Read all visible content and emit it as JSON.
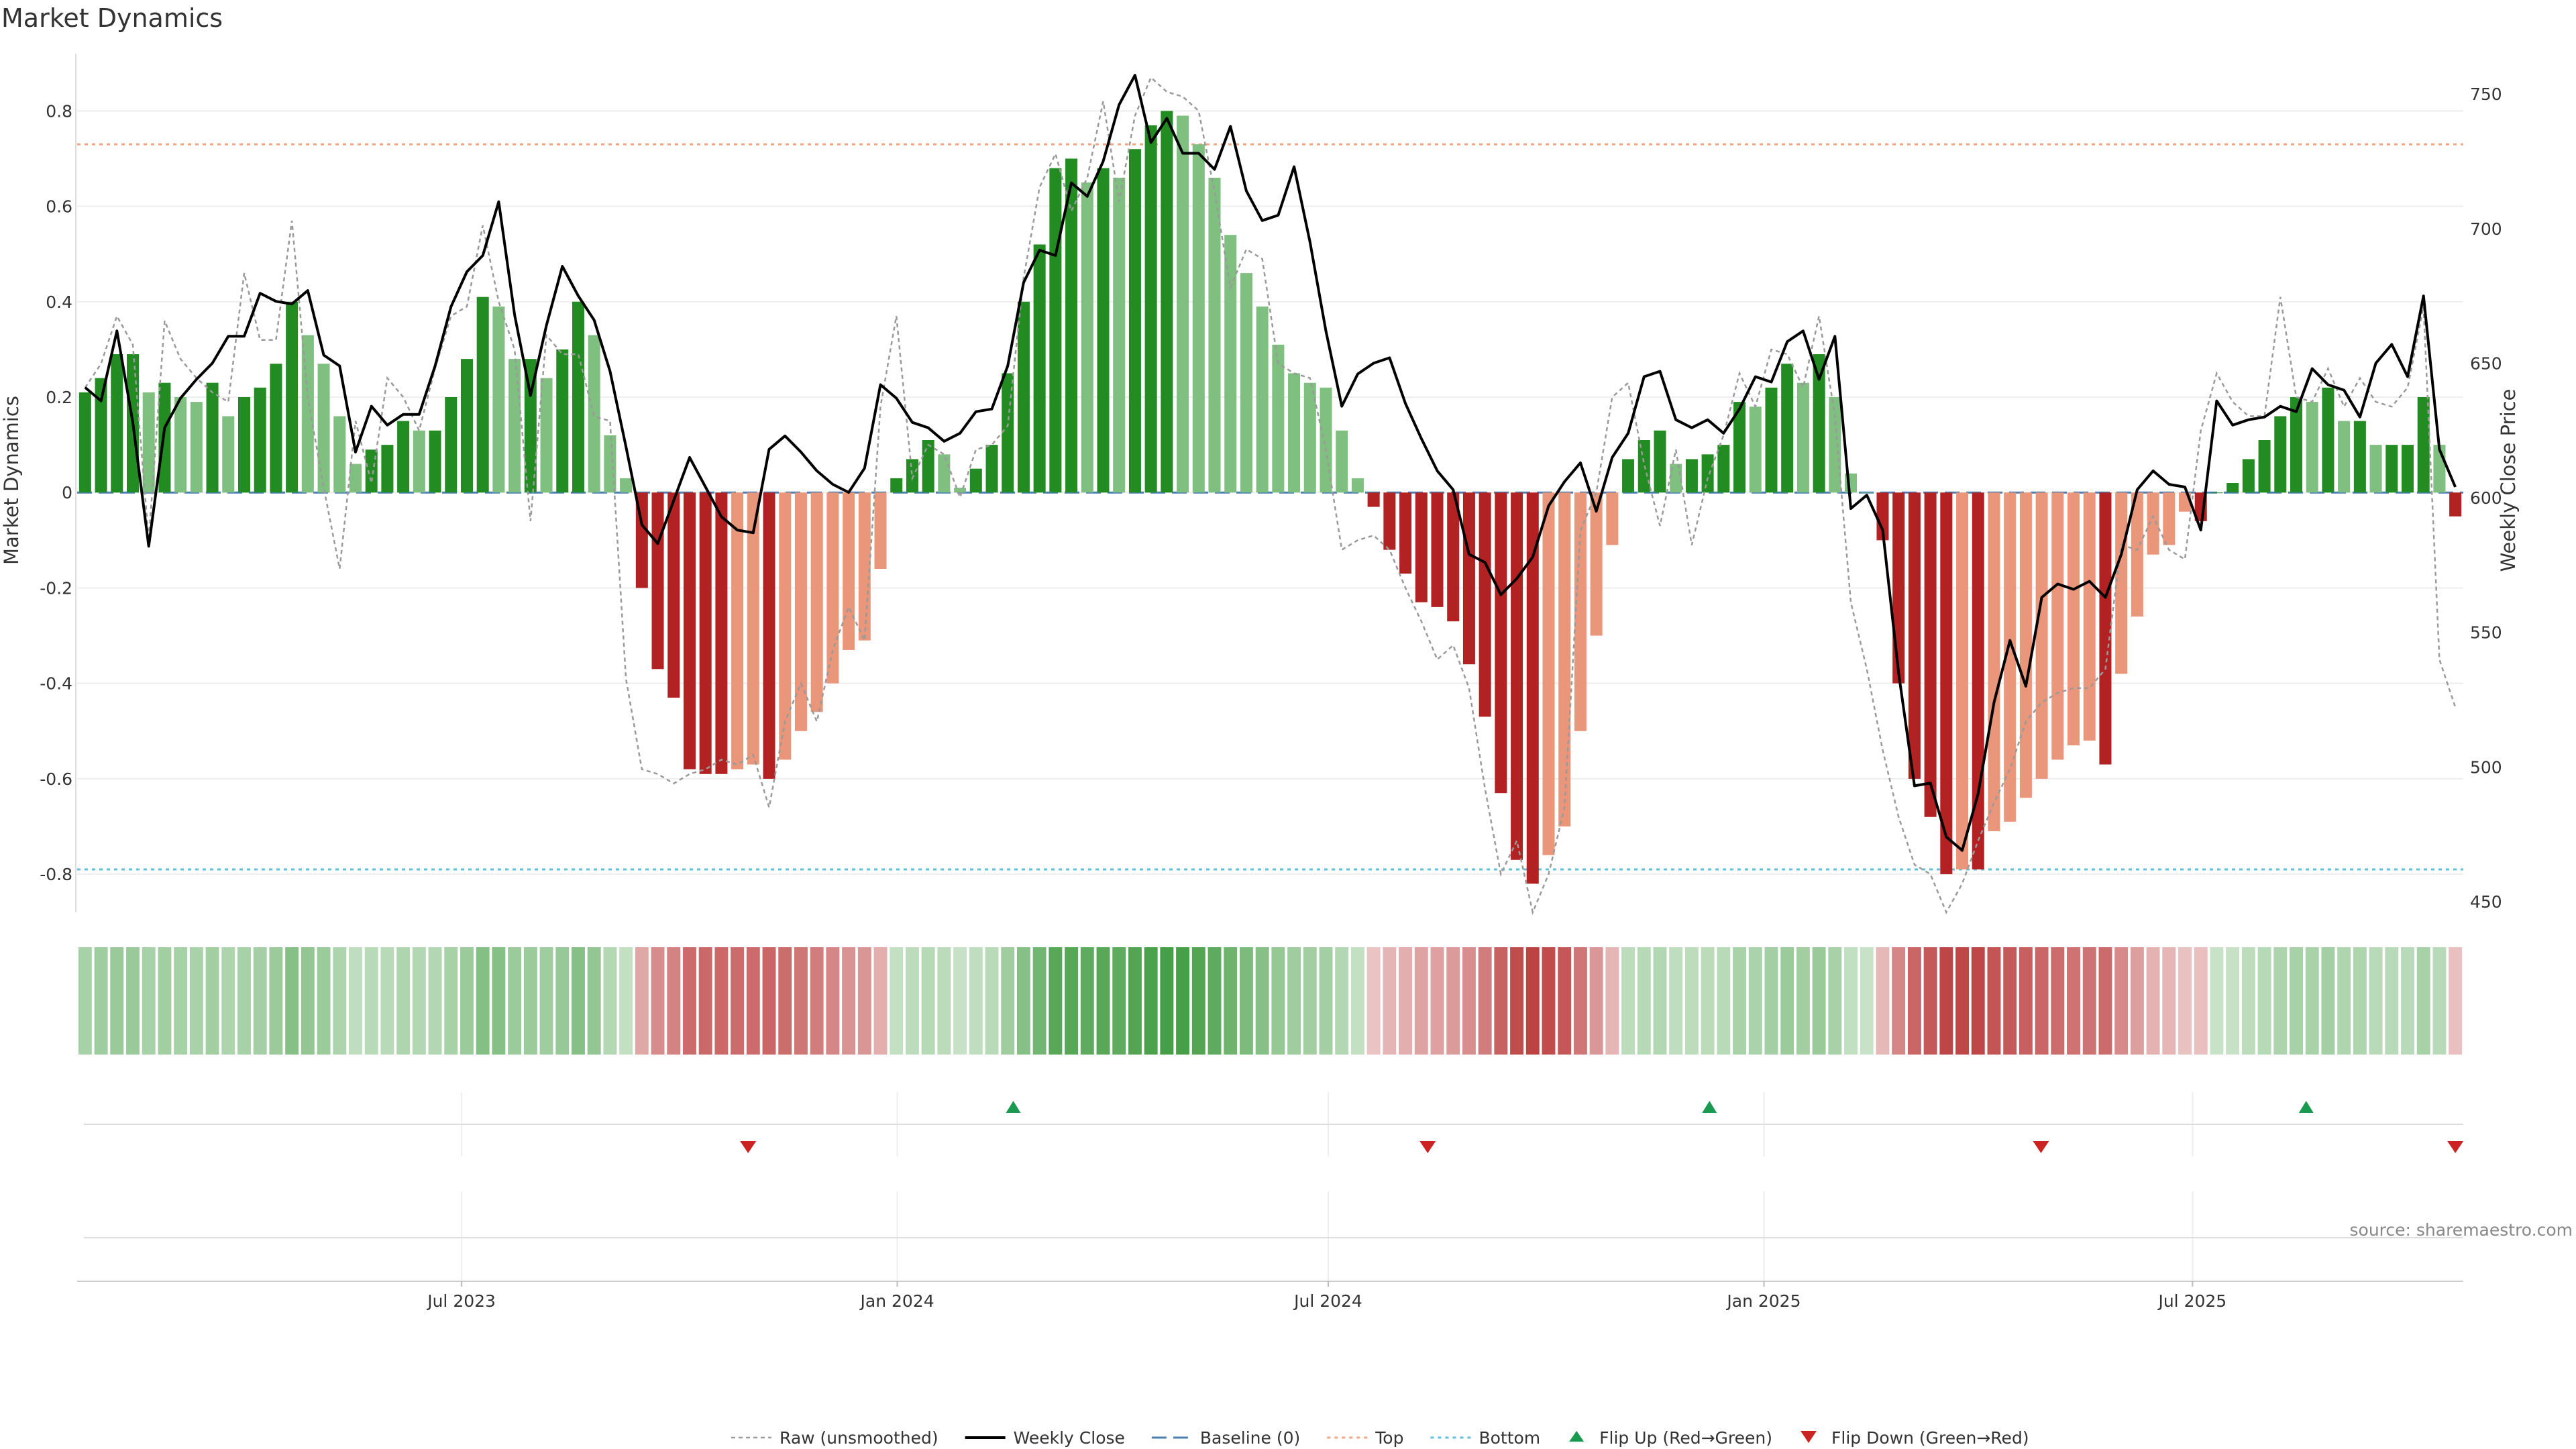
{
  "chart_data": {
    "type": "bar",
    "title": "Market Dynamics",
    "ylabel_left": "Market Dynamics",
    "ylabel_right": "Weekly Close Price",
    "source": "source: sharemaestro.com",
    "ylim_left": [
      -0.88,
      0.92
    ],
    "ylim_right": [
      446,
      765
    ],
    "yticks_left": [
      "0.8",
      "0.6",
      "0.4",
      "0.2",
      "0",
      "-0.2",
      "-0.4",
      "-0.6",
      "-0.8"
    ],
    "yticks_right": [
      "750",
      "700",
      "650",
      "600",
      "550",
      "500",
      "450"
    ],
    "x_start": "2023-01-23",
    "x_end": "2025-10-20",
    "xticks": [
      {
        "label": "Jul 2023",
        "date": "2023-07-01"
      },
      {
        "label": "Jan 2024",
        "date": "2024-01-01"
      },
      {
        "label": "Jul 2024",
        "date": "2024-07-01"
      },
      {
        "label": "Jan 2025",
        "date": "2025-01-01"
      },
      {
        "label": "Jul 2025",
        "date": "2025-07-01"
      }
    ],
    "top_threshold": 0.73,
    "bottom_threshold": -0.79,
    "baseline": 0,
    "dynamics": [
      0.21,
      0.24,
      0.29,
      0.29,
      0.21,
      0.23,
      0.2,
      0.19,
      0.23,
      0.16,
      0.2,
      0.22,
      0.27,
      0.4,
      0.33,
      0.27,
      0.16,
      0.06,
      0.09,
      0.1,
      0.15,
      0.13,
      0.13,
      0.2,
      0.28,
      0.41,
      0.39,
      0.28,
      0.28,
      0.24,
      0.3,
      0.4,
      0.33,
      0.12,
      0.03,
      -0.2,
      -0.37,
      -0.43,
      -0.58,
      -0.59,
      -0.59,
      -0.58,
      -0.57,
      -0.6,
      -0.56,
      -0.5,
      -0.46,
      -0.4,
      -0.33,
      -0.31,
      -0.16,
      0.03,
      0.07,
      0.11,
      0.08,
      0.01,
      0.05,
      0.1,
      0.25,
      0.4,
      0.52,
      0.68,
      0.7,
      0.65,
      0.68,
      0.66,
      0.72,
      0.77,
      0.8,
      0.79,
      0.73,
      0.66,
      0.54,
      0.46,
      0.39,
      0.31,
      0.25,
      0.23,
      0.22,
      0.13,
      0.03,
      -0.03,
      -0.12,
      -0.17,
      -0.23,
      -0.24,
      -0.27,
      -0.36,
      -0.47,
      -0.63,
      -0.77,
      -0.82,
      -0.76,
      -0.7,
      -0.5,
      -0.3,
      -0.11,
      0.07,
      0.11,
      0.13,
      0.06,
      0.07,
      0.08,
      0.1,
      0.19,
      0.18,
      0.22,
      0.27,
      0.23,
      0.29,
      0.2,
      0.04,
      0,
      -0.1,
      -0.4,
      -0.6,
      -0.68,
      -0.8,
      -0.79,
      -0.79,
      -0.71,
      -0.69,
      -0.64,
      -0.6,
      -0.56,
      -0.53,
      -0.52,
      -0.57,
      -0.38,
      -0.26,
      -0.13,
      -0.11,
      -0.04,
      -0.06,
      0,
      0.02,
      0.07,
      0.11,
      0.16,
      0.2,
      0.19,
      0.22,
      0.15,
      0.15,
      0.1,
      0.1,
      0.1,
      0.2,
      0.1,
      -0.05
    ],
    "weekly_close": [
      641,
      636,
      662,
      628,
      582,
      626,
      637,
      644,
      650,
      660,
      660,
      676,
      673,
      672,
      677,
      653,
      649,
      617,
      634,
      627,
      631,
      631,
      649,
      671,
      684,
      690,
      710,
      668,
      638,
      664,
      686,
      675,
      666,
      647,
      619,
      590,
      583,
      599,
      615,
      604,
      593,
      588,
      587,
      618,
      623,
      617,
      610,
      605,
      602,
      611,
      642,
      637,
      628,
      626,
      621,
      624,
      632,
      633,
      649,
      680,
      692,
      690,
      717,
      712,
      725,
      746,
      757,
      732,
      741,
      728,
      728,
      722,
      738,
      714,
      703,
      705,
      723,
      695,
      662,
      634,
      646,
      650,
      652,
      635,
      622,
      610,
      603,
      579,
      576,
      564,
      570,
      578,
      597,
      606,
      613,
      595,
      615,
      624,
      645,
      647,
      629,
      626,
      629,
      624,
      633,
      645,
      643,
      658,
      662,
      644,
      660,
      596,
      601,
      588,
      535,
      493,
      494,
      474,
      469,
      490,
      524,
      547,
      530,
      563,
      568,
      566,
      569,
      563,
      579,
      603,
      610,
      605,
      604,
      588,
      636,
      627,
      629,
      630,
      634,
      632,
      648,
      642,
      640,
      630,
      650,
      657,
      645,
      675,
      618,
      604
    ],
    "raw": [
      0.22,
      0.27,
      0.37,
      0.31,
      -0.1,
      0.36,
      0.28,
      0.24,
      0.21,
      0.19,
      0.46,
      0.32,
      0.32,
      0.57,
      0.2,
      0.01,
      -0.16,
      0.15,
      0.02,
      0.24,
      0.2,
      0.13,
      0.26,
      0.37,
      0.39,
      0.56,
      0.4,
      0.3,
      -0.06,
      0.33,
      0.29,
      0.29,
      0.16,
      0.15,
      -0.39,
      -0.58,
      -0.59,
      -0.61,
      -0.59,
      -0.58,
      -0.56,
      -0.57,
      -0.55,
      -0.66,
      -0.48,
      -0.4,
      -0.48,
      -0.33,
      -0.24,
      -0.31,
      0.18,
      0.37,
      0.03,
      0.1,
      0.08,
      -0.01,
      0.09,
      0.1,
      0.14,
      0.45,
      0.64,
      0.71,
      0.59,
      0.66,
      0.82,
      0.61,
      0.79,
      0.87,
      0.84,
      0.83,
      0.8,
      0.63,
      0.43,
      0.51,
      0.49,
      0.27,
      0.25,
      0.24,
      0.09,
      -0.12,
      -0.1,
      -0.09,
      -0.12,
      -0.2,
      -0.27,
      -0.35,
      -0.32,
      -0.41,
      -0.62,
      -0.8,
      -0.73,
      -0.88,
      -0.8,
      -0.66,
      -0.08,
      0,
      0.2,
      0.23,
      0.06,
      -0.07,
      0.09,
      -0.11,
      0.03,
      0.12,
      0.25,
      0.18,
      0.3,
      0.29,
      0.22,
      0.37,
      0.16,
      -0.23,
      -0.37,
      -0.54,
      -0.68,
      -0.78,
      -0.8,
      -0.88,
      -0.82,
      -0.73,
      -0.65,
      -0.58,
      -0.48,
      -0.44,
      -0.42,
      -0.41,
      -0.41,
      -0.37,
      -0.11,
      -0.12,
      -0.05,
      -0.12,
      -0.14,
      0.13,
      0.25,
      0.19,
      0.16,
      0.16,
      0.41,
      0.2,
      0.19,
      0.26,
      0.18,
      0.24,
      0.19,
      0.18,
      0.22,
      0.39,
      -0.35,
      -0.45
    ],
    "flip_up_dates": [
      "2024-02-19",
      "2024-12-09",
      "2025-08-18"
    ],
    "flip_down_dates": [
      "2023-10-30",
      "2024-08-12",
      "2025-04-28",
      "2025-10-20"
    ],
    "legend_position": "bottom",
    "grid": true
  },
  "legend": {
    "raw": "Raw (unsmoothed)",
    "close": "Weekly Close",
    "baseline": "Baseline (0)",
    "top": "Top",
    "bottom": "Bottom",
    "flip_up": "Flip Up (Red→Green)",
    "flip_down": "Flip Down (Green→Red)"
  },
  "colors": {
    "green_strong": "#228b22",
    "green_light": "#7fbf7f",
    "red_strong": "#b22222",
    "red_light": "#e9967a",
    "raw_line": "#9a9a9a",
    "close_line": "#000000",
    "baseline": "#4a7fb5",
    "top": "#f4a582",
    "bottom": "#5bc0de",
    "flip_up": "#1a9a50",
    "flip_down": "#cc2222"
  }
}
